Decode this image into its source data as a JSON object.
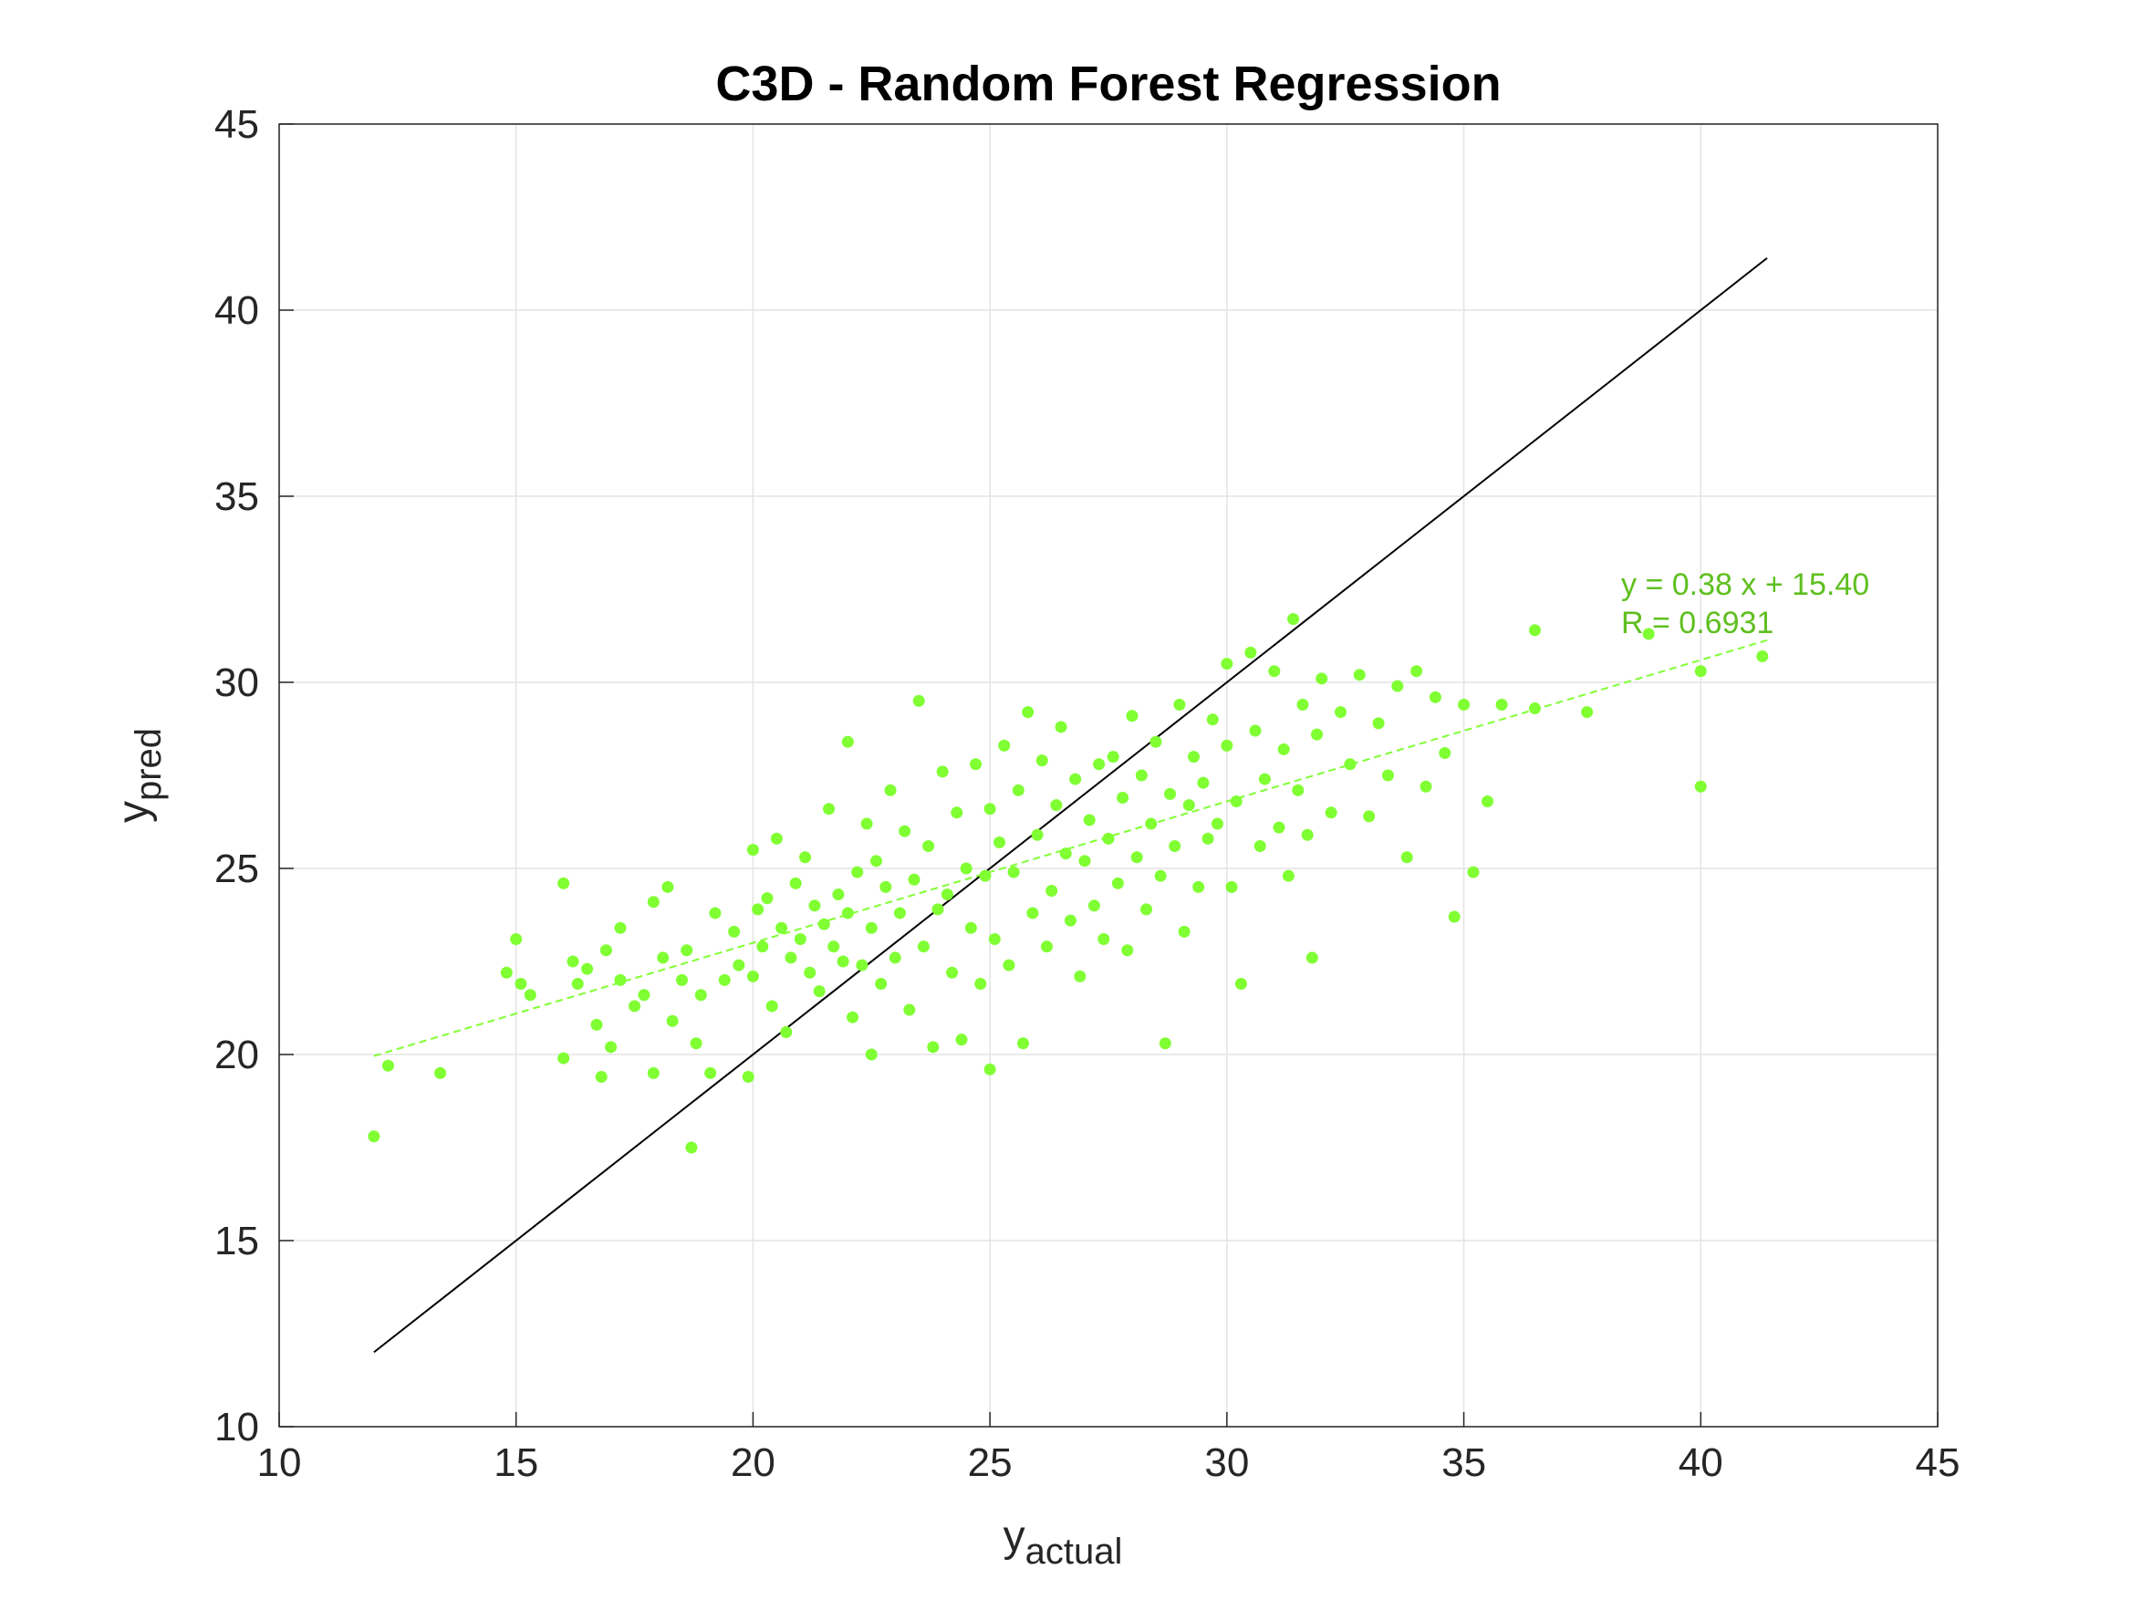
{
  "chart_data": {
    "type": "scatter",
    "title": "C3D - Random Forest Regression",
    "xlabel": {
      "base": "y",
      "sub": "actual"
    },
    "ylabel": {
      "base": "y",
      "sub": "pred"
    },
    "xlim": [
      10,
      45
    ],
    "ylim": [
      10,
      45
    ],
    "xticks": [
      10,
      15,
      20,
      25,
      30,
      35,
      40,
      45
    ],
    "yticks": [
      10,
      15,
      20,
      25,
      30,
      35,
      40,
      45
    ],
    "grid": true,
    "colors": {
      "points": "#80ff33",
      "fit": "#80ff33",
      "annotation": "#5fbf1f",
      "identity": "#000000",
      "grid": "#e3e3e3"
    },
    "identity_line": {
      "x": [
        12.0,
        41.4
      ],
      "y": [
        12.0,
        41.4
      ]
    },
    "fit_line": {
      "slope": 0.38,
      "intercept": 15.4,
      "x": [
        12.0,
        41.4
      ]
    },
    "annotation": [
      "y = 0.38 x + 15.40",
      "R = 0.6931"
    ],
    "points": [
      [
        12.0,
        17.8
      ],
      [
        12.3,
        19.7
      ],
      [
        13.4,
        19.5
      ],
      [
        14.8,
        22.2
      ],
      [
        15.0,
        23.1
      ],
      [
        15.1,
        21.9
      ],
      [
        15.3,
        21.6
      ],
      [
        16.0,
        24.6
      ],
      [
        16.0,
        19.9
      ],
      [
        16.2,
        22.5
      ],
      [
        16.3,
        21.9
      ],
      [
        16.5,
        22.3
      ],
      [
        16.7,
        20.8
      ],
      [
        16.8,
        19.4
      ],
      [
        16.9,
        22.8
      ],
      [
        17.0,
        20.2
      ],
      [
        17.2,
        23.4
      ],
      [
        17.2,
        22.0
      ],
      [
        17.5,
        21.3
      ],
      [
        17.7,
        21.6
      ],
      [
        17.9,
        24.1
      ],
      [
        17.9,
        19.5
      ],
      [
        18.1,
        22.6
      ],
      [
        18.2,
        24.5
      ],
      [
        18.3,
        20.9
      ],
      [
        18.5,
        22.0
      ],
      [
        18.6,
        22.8
      ],
      [
        18.7,
        17.5
      ],
      [
        18.8,
        20.3
      ],
      [
        18.9,
        21.6
      ],
      [
        19.1,
        19.5
      ],
      [
        19.2,
        23.8
      ],
      [
        19.4,
        22.0
      ],
      [
        19.6,
        23.3
      ],
      [
        19.7,
        22.4
      ],
      [
        19.9,
        19.4
      ],
      [
        20.0,
        25.5
      ],
      [
        20.0,
        22.1
      ],
      [
        20.1,
        23.9
      ],
      [
        20.2,
        22.9
      ],
      [
        20.3,
        24.2
      ],
      [
        20.4,
        21.3
      ],
      [
        20.5,
        25.8
      ],
      [
        20.6,
        23.4
      ],
      [
        20.7,
        20.6
      ],
      [
        20.8,
        22.6
      ],
      [
        20.9,
        24.6
      ],
      [
        21.0,
        23.1
      ],
      [
        21.1,
        25.3
      ],
      [
        21.2,
        22.2
      ],
      [
        21.3,
        24.0
      ],
      [
        21.4,
        21.7
      ],
      [
        21.5,
        23.5
      ],
      [
        21.6,
        26.6
      ],
      [
        21.7,
        22.9
      ],
      [
        21.8,
        24.3
      ],
      [
        21.9,
        22.5
      ],
      [
        22.0,
        28.4
      ],
      [
        22.0,
        23.8
      ],
      [
        22.1,
        21.0
      ],
      [
        22.2,
        24.9
      ],
      [
        22.3,
        22.4
      ],
      [
        22.4,
        26.2
      ],
      [
        22.5,
        23.4
      ],
      [
        22.5,
        20.0
      ],
      [
        22.6,
        25.2
      ],
      [
        22.7,
        21.9
      ],
      [
        22.8,
        24.5
      ],
      [
        22.9,
        27.1
      ],
      [
        23.0,
        22.6
      ],
      [
        23.1,
        23.8
      ],
      [
        23.2,
        26.0
      ],
      [
        23.3,
        21.2
      ],
      [
        23.4,
        24.7
      ],
      [
        23.5,
        29.5
      ],
      [
        23.6,
        22.9
      ],
      [
        23.7,
        25.6
      ],
      [
        23.8,
        20.2
      ],
      [
        23.9,
        23.9
      ],
      [
        24.0,
        27.6
      ],
      [
        24.1,
        24.3
      ],
      [
        24.2,
        22.2
      ],
      [
        24.3,
        26.5
      ],
      [
        24.4,
        20.4
      ],
      [
        24.5,
        25.0
      ],
      [
        24.6,
        23.4
      ],
      [
        24.7,
        27.8
      ],
      [
        24.8,
        21.9
      ],
      [
        24.9,
        24.8
      ],
      [
        25.0,
        26.6
      ],
      [
        25.0,
        19.6
      ],
      [
        25.1,
        23.1
      ],
      [
        25.2,
        25.7
      ],
      [
        25.3,
        28.3
      ],
      [
        25.4,
        22.4
      ],
      [
        25.5,
        24.9
      ],
      [
        25.6,
        27.1
      ],
      [
        25.7,
        20.3
      ],
      [
        25.8,
        29.2
      ],
      [
        25.9,
        23.8
      ],
      [
        26.0,
        25.9
      ],
      [
        26.1,
        27.9
      ],
      [
        26.2,
        22.9
      ],
      [
        26.3,
        24.4
      ],
      [
        26.4,
        26.7
      ],
      [
        26.5,
        28.8
      ],
      [
        26.6,
        25.4
      ],
      [
        26.7,
        23.6
      ],
      [
        26.8,
        27.4
      ],
      [
        26.9,
        22.1
      ],
      [
        27.0,
        25.2
      ],
      [
        27.1,
        26.3
      ],
      [
        27.2,
        24.0
      ],
      [
        27.3,
        27.8
      ],
      [
        27.4,
        23.1
      ],
      [
        27.5,
        25.8
      ],
      [
        27.6,
        28.0
      ],
      [
        27.7,
        24.6
      ],
      [
        27.8,
        26.9
      ],
      [
        27.9,
        22.8
      ],
      [
        28.0,
        29.1
      ],
      [
        28.1,
        25.3
      ],
      [
        28.2,
        27.5
      ],
      [
        28.3,
        23.9
      ],
      [
        28.4,
        26.2
      ],
      [
        28.5,
        28.4
      ],
      [
        28.6,
        24.8
      ],
      [
        28.7,
        20.3
      ],
      [
        28.8,
        27.0
      ],
      [
        28.9,
        25.6
      ],
      [
        29.0,
        29.4
      ],
      [
        29.1,
        23.3
      ],
      [
        29.2,
        26.7
      ],
      [
        29.3,
        28.0
      ],
      [
        29.4,
        24.5
      ],
      [
        29.5,
        27.3
      ],
      [
        29.6,
        25.8
      ],
      [
        29.7,
        29.0
      ],
      [
        29.8,
        26.2
      ],
      [
        30.0,
        30.5
      ],
      [
        30.0,
        28.3
      ],
      [
        30.1,
        24.5
      ],
      [
        30.2,
        26.8
      ],
      [
        30.3,
        21.9
      ],
      [
        30.5,
        30.8
      ],
      [
        30.6,
        28.7
      ],
      [
        30.7,
        25.6
      ],
      [
        30.8,
        27.4
      ],
      [
        31.0,
        30.3
      ],
      [
        31.1,
        26.1
      ],
      [
        31.2,
        28.2
      ],
      [
        31.3,
        24.8
      ],
      [
        31.4,
        31.7
      ],
      [
        31.5,
        27.1
      ],
      [
        31.6,
        29.4
      ],
      [
        31.7,
        25.9
      ],
      [
        31.8,
        22.6
      ],
      [
        31.9,
        28.6
      ],
      [
        32.0,
        30.1
      ],
      [
        32.2,
        26.5
      ],
      [
        32.4,
        29.2
      ],
      [
        32.6,
        27.8
      ],
      [
        32.8,
        30.2
      ],
      [
        33.0,
        26.4
      ],
      [
        33.2,
        28.9
      ],
      [
        33.4,
        27.5
      ],
      [
        33.6,
        29.9
      ],
      [
        33.8,
        25.3
      ],
      [
        34.0,
        30.3
      ],
      [
        34.2,
        27.2
      ],
      [
        34.4,
        29.6
      ],
      [
        34.6,
        28.1
      ],
      [
        34.8,
        23.7
      ],
      [
        35.0,
        29.4
      ],
      [
        35.2,
        24.9
      ],
      [
        35.5,
        26.8
      ],
      [
        35.8,
        29.4
      ],
      [
        36.5,
        29.3
      ],
      [
        36.5,
        31.4
      ],
      [
        37.6,
        29.2
      ],
      [
        38.9,
        31.3
      ],
      [
        40.0,
        30.3
      ],
      [
        40.0,
        27.2
      ],
      [
        41.3,
        30.7
      ]
    ]
  }
}
